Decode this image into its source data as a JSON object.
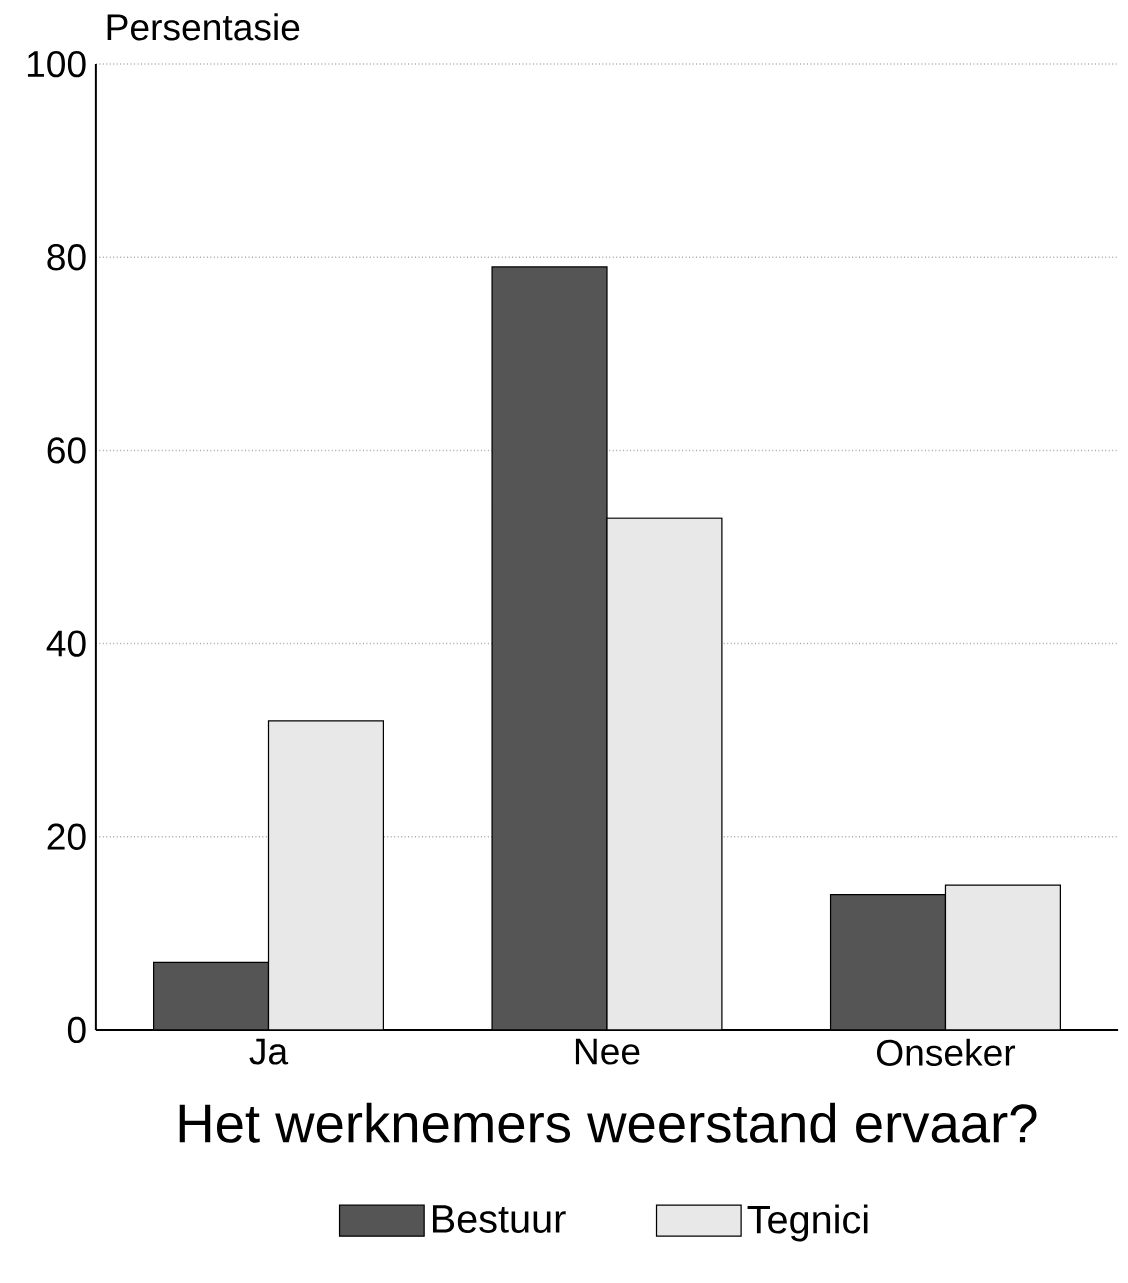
{
  "chart_data": {
    "type": "bar",
    "xlabel": "Het werknemers weerstand ervaar?",
    "ylabel": "Persentasie",
    "categories": [
      "Ja",
      "Nee",
      "Onseker"
    ],
    "series": [
      {
        "name": "Bestuur",
        "color": "#555555",
        "values": [
          7,
          79,
          14
        ]
      },
      {
        "name": "Tegnici",
        "color": "#e8e8e8",
        "values": [
          32,
          53,
          15
        ]
      }
    ],
    "ylim": [
      0,
      100
    ],
    "yticks": [
      0,
      20,
      40,
      60,
      80,
      100
    ],
    "grid": "y",
    "legend": "bottom"
  }
}
